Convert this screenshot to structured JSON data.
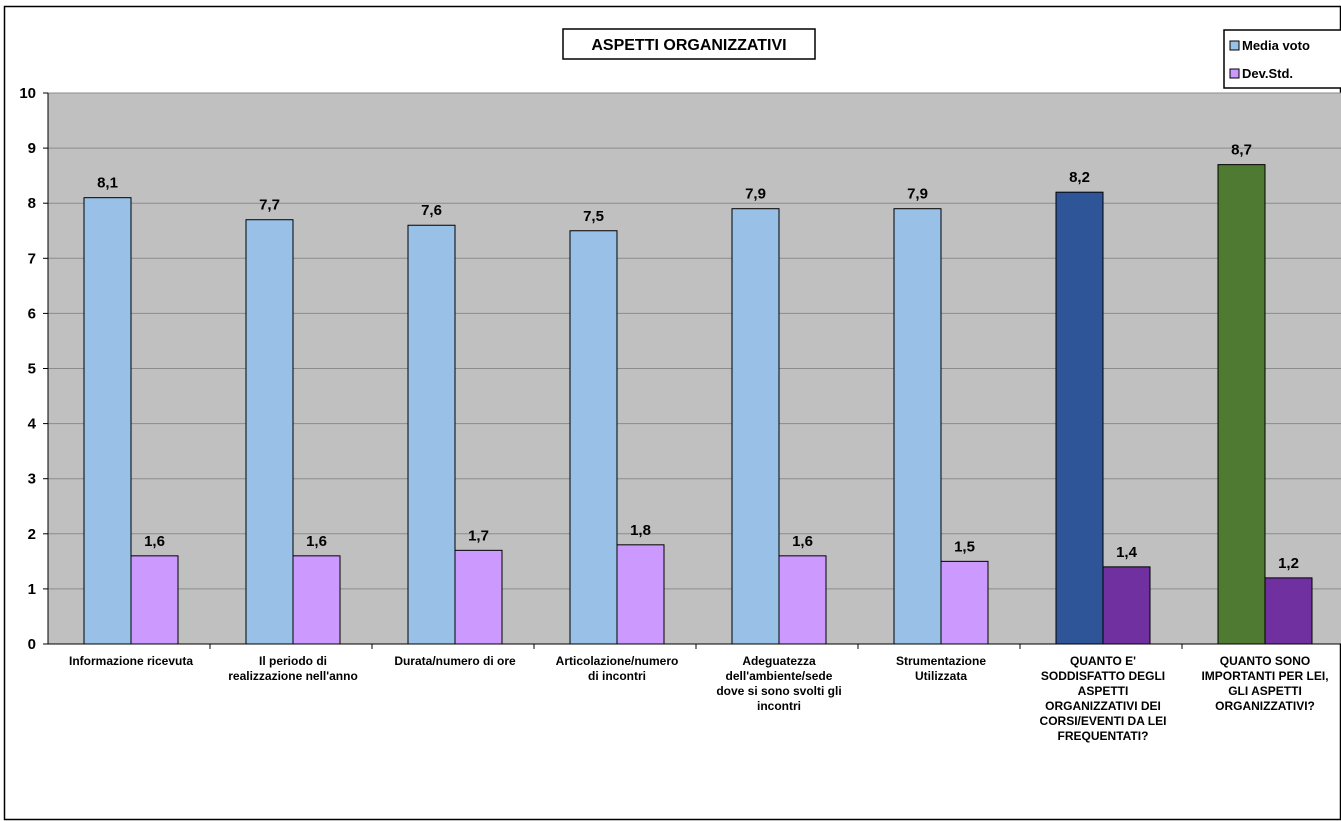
{
  "chart_data": {
    "type": "bar",
    "title": "ASPETTI ORGANIZZATIVI",
    "xlabel": "",
    "ylabel": "",
    "ylim": [
      0,
      10
    ],
    "yticks": [
      "0",
      "1",
      "2",
      "3",
      "4",
      "5",
      "6",
      "7",
      "8",
      "9",
      "10"
    ],
    "grid": true,
    "legend_position": "top-right",
    "categories": [
      [
        "Informazione ricevuta"
      ],
      [
        "Il periodo di",
        "realizzazione nell'anno"
      ],
      [
        "Durata/numero di ore"
      ],
      [
        "Articolazione/numero",
        "di incontri"
      ],
      [
        "Adeguatezza",
        "dell'ambiente/sede",
        "dove si sono svolti gli",
        "incontri"
      ],
      [
        "Strumentazione",
        "Utilizzata"
      ],
      [
        "QUANTO E'",
        "SODDISFATTO DEGLI",
        "ASPETTI",
        "ORGANIZZATIVI DEI",
        "CORSI/EVENTI DA LEI",
        "FREQUENTATI?"
      ],
      [
        "QUANTO SONO",
        "IMPORTANTI PER LEI,",
        "GLI ASPETTI",
        "ORGANIZZATIVI?"
      ]
    ],
    "series": [
      {
        "name": "Media voto",
        "values": [
          8.1,
          7.7,
          7.6,
          7.5,
          7.9,
          7.9,
          8.2,
          8.7
        ],
        "labels": [
          "8,1",
          "7,7",
          "7,6",
          "7,5",
          "7,9",
          "7,9",
          "8,2",
          "8,7"
        ],
        "color": "#99c0e6",
        "point_colors": [
          "#99c0e6",
          "#99c0e6",
          "#99c0e6",
          "#99c0e6",
          "#99c0e6",
          "#99c0e6",
          "#2e5597",
          "#4e7a31"
        ]
      },
      {
        "name": "Dev.Std.",
        "values": [
          1.6,
          1.6,
          1.7,
          1.8,
          1.6,
          1.5,
          1.4,
          1.2
        ],
        "labels": [
          "1,6",
          "1,6",
          "1,7",
          "1,8",
          "1,6",
          "1,5",
          "1,4",
          "1,2"
        ],
        "color": "#cc99ff",
        "point_colors": [
          "#cc99ff",
          "#cc99ff",
          "#cc99ff",
          "#cc99ff",
          "#cc99ff",
          "#cc99ff",
          "#7030a0",
          "#7030a0"
        ]
      }
    ],
    "plot_background": "#c0c0c0"
  }
}
